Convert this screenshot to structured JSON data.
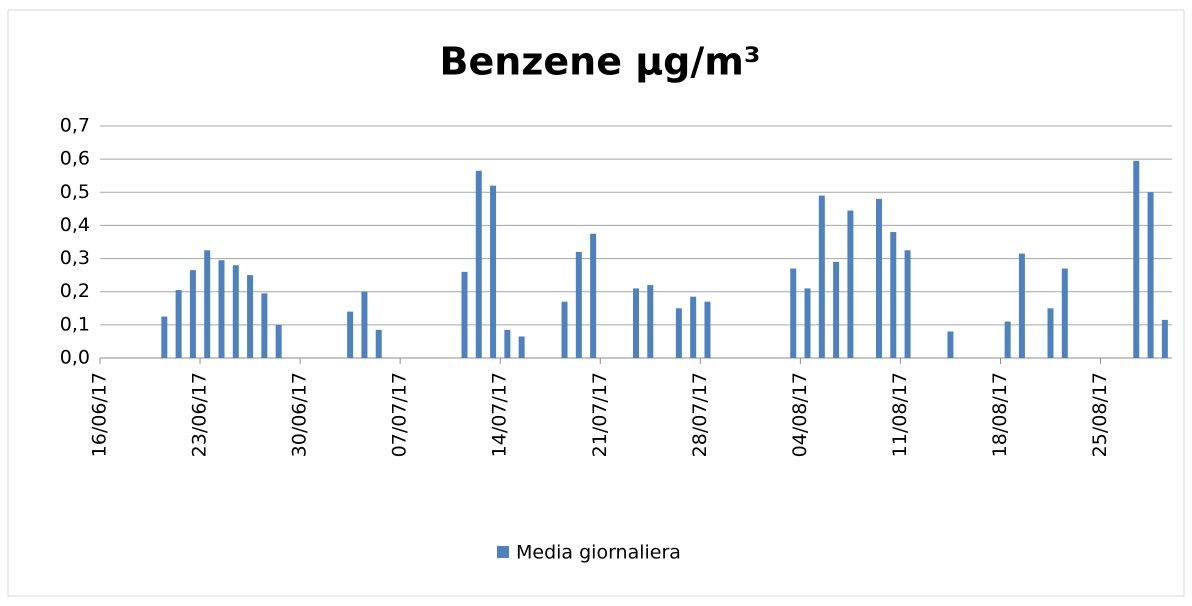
{
  "chart_data": {
    "type": "bar",
    "title": "Benzene µg/m³",
    "categories": [
      "16/06/17",
      null,
      null,
      null,
      null,
      null,
      null,
      "23/06/17",
      null,
      null,
      null,
      null,
      null,
      null,
      "30/06/17",
      null,
      null,
      null,
      null,
      null,
      null,
      "07/07/17",
      null,
      null,
      null,
      null,
      null,
      null,
      "14/07/17",
      null,
      null,
      null,
      null,
      null,
      null,
      "21/07/17",
      null,
      null,
      null,
      null,
      null,
      null,
      "28/07/17",
      null,
      null,
      null,
      null,
      null,
      null,
      "04/08/17",
      null,
      null,
      null,
      null,
      null,
      null,
      "11/08/17",
      null,
      null,
      null,
      null,
      null,
      null,
      "18/08/17",
      null,
      null,
      null,
      null,
      null,
      null,
      "25/08/17",
      null,
      null,
      null,
      null
    ],
    "series": [
      {
        "name": "Media giornaliera",
        "color": "#4f81bd",
        "values": [
          null,
          null,
          null,
          null,
          0.125,
          0.205,
          0.265,
          0.325,
          0.295,
          0.28,
          0.25,
          0.195,
          0.1,
          null,
          null,
          null,
          null,
          0.14,
          0.2,
          0.085,
          null,
          null,
          null,
          null,
          null,
          0.26,
          0.565,
          0.52,
          0.085,
          0.065,
          null,
          null,
          0.17,
          0.32,
          0.375,
          null,
          null,
          0.21,
          0.22,
          null,
          0.15,
          0.185,
          0.17,
          null,
          null,
          null,
          null,
          null,
          0.27,
          0.21,
          0.49,
          0.29,
          0.445,
          null,
          0.48,
          0.38,
          0.325,
          null,
          null,
          0.08,
          null,
          null,
          null,
          0.11,
          0.315,
          null,
          0.15,
          0.27,
          null,
          null,
          null,
          null,
          0.595,
          0.5,
          0.115
        ]
      }
    ],
    "ylim": [
      0,
      0.7
    ],
    "yticks": [
      {
        "value": 0,
        "label": "0,0"
      },
      {
        "value": 0.1,
        "label": "0,1"
      },
      {
        "value": 0.2,
        "label": "0,2"
      },
      {
        "value": 0.3,
        "label": "0,3"
      },
      {
        "value": 0.4,
        "label": "0,4"
      },
      {
        "value": 0.5,
        "label": "0,5"
      },
      {
        "value": 0.6,
        "label": "0,6"
      },
      {
        "value": 0.7,
        "label": "0,7"
      }
    ],
    "grid": true,
    "legend": "bottom"
  }
}
